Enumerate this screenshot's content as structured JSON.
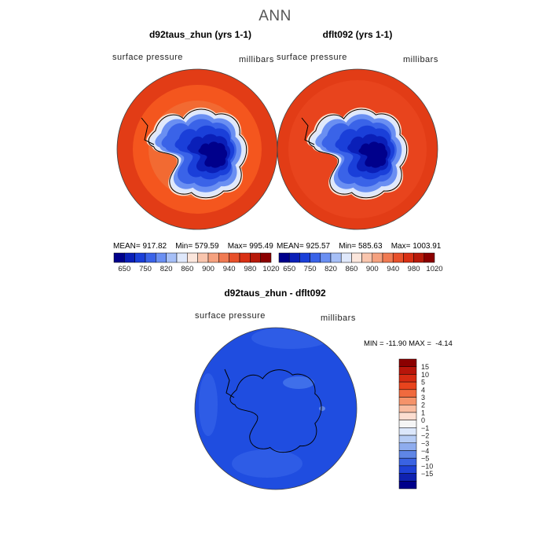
{
  "title": "ANN",
  "panels": [
    {
      "title": "d92taus_zhun (yrs 1-1)",
      "variable": "surface pressure",
      "units": "millibars",
      "stats": {
        "mean_label": "MEAN=",
        "mean": "917.82",
        "min_label": "Min=",
        "min": "579.59",
        "max_label": "Max=",
        "max": "995.49"
      }
    },
    {
      "title": "dflt092 (yrs 1-1)",
      "variable": "surface pressure",
      "units": "millibars",
      "stats": {
        "mean_label": "MEAN=",
        "mean": "925.57",
        "min_label": "Min=",
        "min": "585.63",
        "max_label": "Max=",
        "max": "1003.91"
      }
    }
  ],
  "horizontal_colorbar": {
    "colors": [
      "#00008b",
      "#0a1fb8",
      "#1a3fd9",
      "#3a63e8",
      "#6a8ff2",
      "#a6bff7",
      "#dfe8fb",
      "#fbe6dc",
      "#f9c5ad",
      "#f5a17f",
      "#f07a52",
      "#e8502a",
      "#d93014",
      "#b81a0a",
      "#8b0000"
    ],
    "tick_labels": [
      "650",
      "750",
      "820",
      "860",
      "900",
      "940",
      "980",
      "1020"
    ]
  },
  "difference_panel": {
    "title": "d92taus_zhun - dflt092",
    "variable": "surface pressure",
    "units": "millibars",
    "min_label": "MIN =",
    "min": "-11.90",
    "max_label": "MAX =",
    "max": "-4.14"
  },
  "vertical_colorbar": {
    "colors_top_to_bottom": [
      "#8b0000",
      "#b8150a",
      "#d62b12",
      "#e8441d",
      "#f06a3e",
      "#f5936a",
      "#f9bca0",
      "#fcddd0",
      "#f5f5f5",
      "#dce7fb",
      "#b6ccf5",
      "#8eacee",
      "#5f86e6",
      "#3a63e2",
      "#1f42d6",
      "#0f22b0",
      "#00008b"
    ],
    "tick_labels": [
      "15",
      "10",
      "5",
      "4",
      "3",
      "2",
      "1",
      "0",
      "−1",
      "−2",
      "−3",
      "−4",
      "−5",
      "−10",
      "−15"
    ]
  },
  "chart_data": {
    "type": "heatmap",
    "title": "ANN",
    "maps": [
      {
        "title": "d92taus_zhun (yrs 1-1)",
        "field": "surface pressure",
        "units": "millibars",
        "mean": 917.82,
        "min": 579.59,
        "max": 995.49
      },
      {
        "title": "dflt092 (yrs 1-1)",
        "field": "surface pressure",
        "units": "millibars",
        "mean": 925.57,
        "min": 585.63,
        "max": 1003.91
      },
      {
        "title": "d92taus_zhun - dflt092",
        "field": "surface pressure",
        "units": "millibars",
        "min": -11.9,
        "max": -4.14
      }
    ],
    "contour_levels_top": [
      650,
      750,
      820,
      860,
      900,
      940,
      980,
      1020
    ],
    "contour_levels_diff": [
      15,
      10,
      5,
      4,
      3,
      2,
      1,
      0,
      -1,
      -2,
      -3,
      -4,
      -5,
      -10,
      -15
    ]
  }
}
